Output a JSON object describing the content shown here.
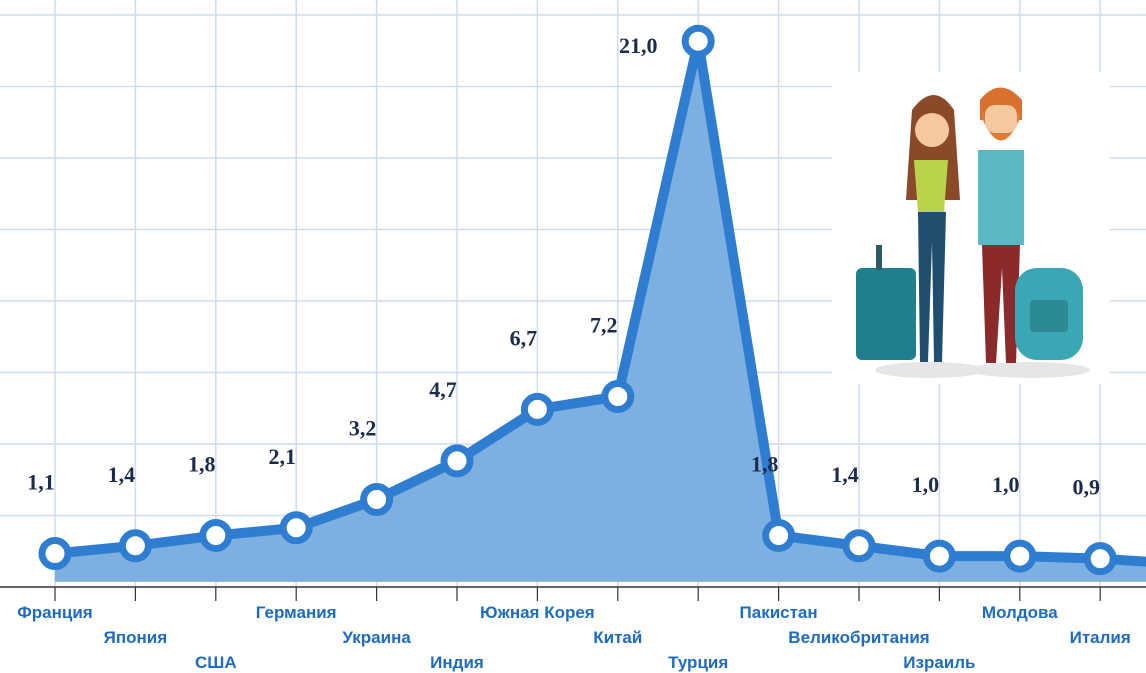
{
  "chart_data": {
    "type": "area",
    "categories": [
      "Франция",
      "Япония",
      "США",
      "Германия",
      "Украина",
      "Индия",
      "Южная Корея",
      "Китай",
      "Турция",
      "Пакистан",
      "Великобритания",
      "Израиль",
      "Молдова",
      "Италия",
      null
    ],
    "values": [
      1.1,
      1.4,
      1.8,
      2.1,
      3.2,
      4.7,
      6.7,
      7.2,
      21.0,
      1.8,
      1.4,
      1.0,
      1.0,
      0.9,
      0.7
    ],
    "value_labels": [
      "1,1",
      "1,4",
      "1,8",
      "2,1",
      "3,2",
      "4,7",
      "6,7",
      "7,2",
      "21,0",
      "1,8",
      "1,4",
      "1,0",
      "1,0",
      "0,9",
      null
    ],
    "color": "#2f7dd1",
    "fill": "#7db0e0",
    "ylim": [
      -0.2,
      22.6
    ],
    "grid": true
  }
}
